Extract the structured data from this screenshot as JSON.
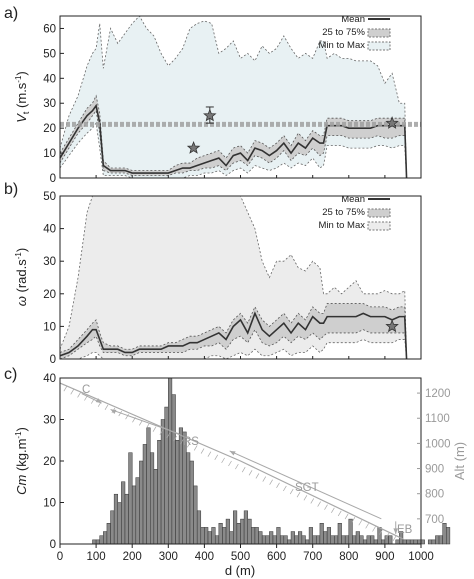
{
  "chart_data": [
    {
      "panel": "a)",
      "type": "line",
      "ylabel": "V_t (m.s⁻¹)",
      "ylim": [
        0,
        65
      ],
      "yticks": [
        0,
        10,
        20,
        30,
        40,
        50,
        60
      ],
      "xlim": [
        0,
        1000
      ],
      "legend": [
        "Mean",
        "25 to 75%",
        "Min to Max"
      ],
      "legend_position": "top-right",
      "x": [
        0,
        25,
        50,
        75,
        90,
        100,
        110,
        120,
        140,
        160,
        180,
        200,
        220,
        240,
        260,
        280,
        300,
        320,
        340,
        360,
        380,
        400,
        420,
        440,
        460,
        480,
        500,
        520,
        540,
        560,
        580,
        600,
        620,
        640,
        660,
        680,
        700,
        720,
        730,
        740,
        760,
        780,
        800,
        820,
        840,
        860,
        880,
        900,
        920,
        940,
        955,
        960
      ],
      "series": [
        {
          "name": "Mean",
          "values": [
            8,
            14,
            20,
            25,
            27,
            29,
            22,
            5,
            3,
            3,
            3,
            2,
            2,
            2,
            2,
            2,
            2,
            3,
            4,
            4,
            5,
            6,
            7,
            8,
            5,
            9,
            10,
            7,
            12,
            11,
            9,
            11,
            14,
            10,
            14,
            12,
            16,
            14,
            14,
            21,
            21,
            21,
            20,
            20,
            20,
            20,
            21,
            21,
            21,
            21,
            21,
            0
          ]
        },
        {
          "name": "25%",
          "values": [
            6,
            12,
            18,
            22,
            25,
            27,
            18,
            3,
            2,
            2,
            2,
            1,
            1,
            1,
            1,
            1,
            1,
            2,
            2,
            3,
            3,
            4,
            4,
            5,
            3,
            6,
            7,
            5,
            9,
            8,
            6,
            8,
            11,
            7,
            10,
            9,
            12,
            9,
            10,
            17,
            17,
            17,
            16,
            16,
            16,
            16,
            17,
            16,
            16,
            17,
            17,
            0
          ]
        },
        {
          "name": "75%",
          "values": [
            10,
            16,
            22,
            28,
            30,
            33,
            26,
            7,
            4,
            4,
            4,
            3,
            3,
            3,
            3,
            3,
            3,
            5,
            6,
            6,
            8,
            9,
            10,
            11,
            8,
            12,
            13,
            10,
            15,
            14,
            12,
            14,
            17,
            13,
            18,
            15,
            19,
            17,
            17,
            24,
            24,
            24,
            23,
            23,
            23,
            23,
            24,
            24,
            24,
            24,
            24,
            0
          ]
        },
        {
          "name": "Min",
          "values": [
            4,
            9,
            14,
            18,
            20,
            22,
            12,
            1,
            1,
            1,
            1,
            0,
            0,
            0,
            0,
            0,
            0,
            0,
            0,
            1,
            1,
            2,
            2,
            3,
            1,
            3,
            4,
            2,
            5,
            4,
            3,
            4,
            6,
            4,
            6,
            5,
            8,
            4,
            5,
            13,
            13,
            13,
            12,
            12,
            12,
            12,
            13,
            13,
            12,
            13,
            13,
            0
          ]
        },
        {
          "name": "Max",
          "values": [
            12,
            25,
            33,
            45,
            50,
            52,
            62,
            44,
            60,
            54,
            58,
            62,
            65,
            60,
            57,
            50,
            45,
            48,
            52,
            60,
            62,
            63,
            62,
            50,
            52,
            55,
            48,
            50,
            47,
            53,
            50,
            52,
            57,
            52,
            48,
            50,
            48,
            55,
            55,
            48,
            50,
            48,
            48,
            47,
            47,
            47,
            45,
            38,
            42,
            30,
            30,
            0
          ]
        }
      ],
      "reference_line": {
        "y": 21.5
      },
      "markers": [
        {
          "x": 415,
          "y": 25,
          "err_low": 22,
          "err_high": 28.5
        },
        {
          "x": 370,
          "y": 12
        },
        {
          "x": 920,
          "y": 22
        }
      ]
    },
    {
      "panel": "b)",
      "type": "line",
      "ylabel": "ω (rad.s⁻¹)",
      "ylim": [
        0,
        50
      ],
      "yticks": [
        0,
        10,
        20,
        30,
        40,
        50
      ],
      "xlim": [
        0,
        1000
      ],
      "legend": [
        "Mean",
        "25 to 75%",
        "Min to Max"
      ],
      "legend_position": "top-right",
      "x": [
        0,
        25,
        50,
        75,
        90,
        100,
        110,
        120,
        140,
        160,
        180,
        200,
        220,
        240,
        260,
        280,
        300,
        320,
        340,
        360,
        380,
        400,
        420,
        440,
        460,
        480,
        500,
        520,
        540,
        560,
        580,
        600,
        620,
        640,
        660,
        680,
        700,
        720,
        730,
        740,
        760,
        780,
        800,
        820,
        840,
        860,
        880,
        900,
        920,
        940,
        955,
        960
      ],
      "series": [
        {
          "name": "Mean",
          "values": [
            1,
            2,
            4,
            7,
            9,
            9,
            6,
            3,
            3,
            3,
            2,
            2,
            3,
            3,
            3,
            3,
            4,
            4,
            4,
            5,
            5,
            6,
            7,
            8,
            6,
            10,
            12,
            8,
            14,
            9,
            7,
            9,
            11,
            8,
            11,
            9,
            13,
            11,
            11,
            13,
            13,
            13,
            13,
            13,
            14,
            13,
            13,
            13,
            12,
            13,
            13,
            0
          ]
        },
        {
          "name": "25%",
          "values": [
            0,
            1,
            3,
            5,
            6,
            7,
            4,
            2,
            2,
            2,
            1,
            1,
            2,
            2,
            2,
            2,
            2,
            2,
            2,
            3,
            3,
            4,
            4,
            5,
            3,
            6,
            7,
            5,
            9,
            5,
            4,
            5,
            7,
            5,
            7,
            6,
            8,
            6,
            7,
            8,
            8,
            8,
            8,
            8,
            9,
            8,
            8,
            8,
            8,
            8,
            8,
            0
          ]
        },
        {
          "name": "75%",
          "values": [
            2,
            3,
            6,
            9,
            11,
            12,
            8,
            5,
            4,
            4,
            3,
            3,
            4,
            4,
            4,
            4,
            5,
            5,
            6,
            7,
            7,
            8,
            9,
            10,
            8,
            12,
            14,
            11,
            16,
            12,
            10,
            12,
            14,
            11,
            14,
            12,
            16,
            14,
            14,
            17,
            17,
            17,
            17,
            17,
            17,
            16,
            16,
            16,
            15,
            16,
            16,
            0
          ]
        },
        {
          "name": "Min",
          "values": [
            0,
            0,
            0,
            1,
            2,
            2,
            1,
            0,
            0,
            0,
            0,
            0,
            0,
            0,
            0,
            0,
            0,
            0,
            0,
            0,
            0,
            0,
            1,
            1,
            0,
            1,
            2,
            1,
            3,
            1,
            1,
            2,
            3,
            1,
            2,
            2,
            4,
            2,
            3,
            5,
            5,
            5,
            5,
            5,
            6,
            5,
            5,
            5,
            5,
            6,
            6,
            0
          ]
        },
        {
          "name": "Max",
          "values": [
            3,
            10,
            25,
            45,
            50,
            50,
            50,
            50,
            50,
            50,
            50,
            50,
            50,
            50,
            50,
            50,
            50,
            50,
            50,
            50,
            50,
            50,
            50,
            50,
            50,
            50,
            50,
            45,
            40,
            30,
            25,
            30,
            30,
            32,
            28,
            27,
            30,
            28,
            20,
            20,
            22,
            20,
            22,
            24,
            20,
            20,
            20,
            21,
            20,
            20,
            21,
            0
          ]
        }
      ],
      "markers": [
        {
          "x": 920,
          "y": 10
        }
      ]
    },
    {
      "panel": "c)",
      "type": "bar",
      "ylabel": "Cm (kg.m⁻¹)",
      "y2label": "Alt (m)",
      "xlabel": "d (m)",
      "xlim": [
        0,
        1000
      ],
      "xticks": [
        0,
        100,
        200,
        300,
        400,
        500,
        600,
        700,
        800,
        900,
        1000
      ],
      "ylim": [
        0,
        40
      ],
      "yticks": [
        0,
        10,
        20,
        30,
        40
      ],
      "y2lim": [
        600,
        1260
      ],
      "y2ticks": [
        700,
        800,
        900,
        1000,
        1100,
        1200
      ],
      "bin_width": 10,
      "bin_start": 90,
      "values": [
        1,
        1,
        2,
        3,
        5,
        8,
        12,
        10,
        15,
        12,
        22,
        14,
        16,
        20,
        24,
        28,
        22,
        18,
        25,
        30,
        33,
        40,
        36,
        25,
        28,
        27,
        22,
        20,
        14,
        8,
        4,
        4,
        3,
        4,
        2,
        5,
        4,
        6,
        3,
        8,
        5,
        6,
        8,
        6,
        4,
        4,
        3,
        2,
        2,
        3,
        2,
        4,
        2,
        2,
        1,
        3,
        2,
        3,
        2,
        1,
        4,
        2,
        2,
        5,
        3,
        4,
        2,
        2,
        5,
        2,
        2,
        6,
        2,
        3,
        2,
        1,
        2,
        2,
        1,
        4,
        1,
        2,
        2,
        0,
        1,
        3,
        1,
        1,
        1,
        1,
        1,
        1,
        0,
        1,
        1,
        2,
        2,
        5,
        4,
        0
      ],
      "altitude_profile": {
        "x": [
          0,
          500,
          950
        ],
        "alt": [
          1240,
          930,
          620
        ]
      },
      "annotations": [
        "C",
        "RS",
        "SGT",
        "EB"
      ]
    }
  ],
  "labels": {
    "panel_a": "a)",
    "panel_b": "b)",
    "panel_c": "c)",
    "ylabel_a_main": "V",
    "ylabel_a_sub": "t",
    "ylabel_a_unit": " (m.s",
    "ylabel_a_exp": "-1",
    "ylabel_a_close": ")",
    "ylabel_b_main": "ω",
    "ylabel_b_unit": " (rad.s",
    "ylabel_b_exp": "-1",
    "ylabel_b_close": ")",
    "ylabel_c_main": "Cm",
    "ylabel_c_unit": " (kg.m",
    "ylabel_c_exp": "-1",
    "ylabel_c_close": ")",
    "y2label_c": "Alt (m)",
    "xlabel_c": "d (m)",
    "legend_mean": "Mean",
    "legend_iqr": "25 to 75%",
    "legend_range": "Min to Max",
    "ann_c": "C",
    "ann_rs": "RS",
    "ann_sgt": "SGT",
    "ann_eb": "EB"
  },
  "colors": {
    "range_fill_a": "#e8f1f3",
    "range_fill_b": "#ececec",
    "iqr_fill": "#cfcfcf",
    "mean_line": "#333333",
    "bar_fill": "#8a8a8a",
    "altitude": "#a8a8a8",
    "marker": "#777777"
  }
}
